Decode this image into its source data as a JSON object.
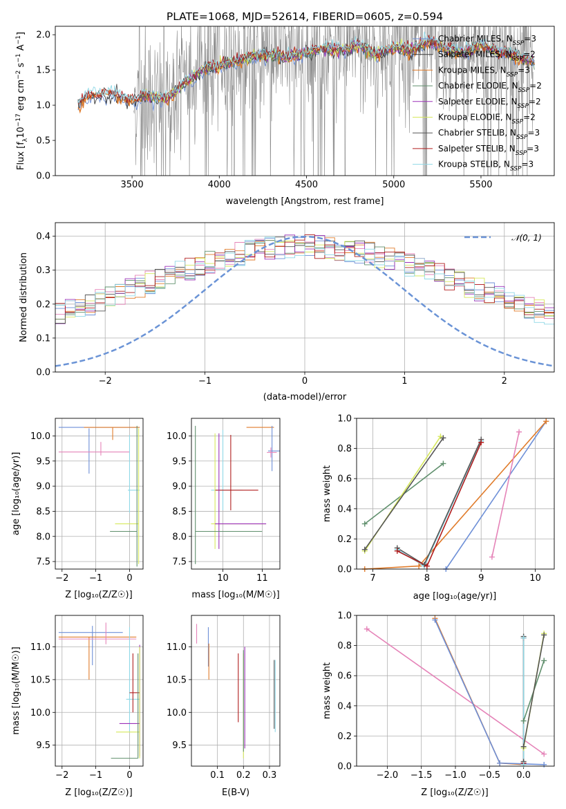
{
  "colors": {
    "chabrier_miles": "#6d8fd7",
    "salpeter_miles": "#3a3a3a",
    "kroupa_miles": "#e07b2a",
    "chabrier_elodie": "#5f8f6c",
    "salpeter_elodie": "#9b30b8",
    "kroupa_elodie": "#d6e85b",
    "chabrier_stelib": "#555555",
    "salpeter_stelib": "#b01c1c",
    "kroupa_stelib": "#8fd8e6",
    "gaussian": "#6a93d6",
    "data": "#8a8a8a"
  },
  "chart_data": [
    {
      "id": "spectrum",
      "type": "line",
      "title": "PLATE=1068, MJD=52614, FIBERID=0605, z=0.594",
      "xlabel": "wavelength [Angstrom, rest frame]",
      "ylabel_parts": [
        "Flux [f",
        "λ",
        "10",
        "−17",
        " erg cm",
        "−2",
        " s",
        "−1",
        " A",
        "−1",
        "]"
      ],
      "xlim": [
        3060,
        5920
      ],
      "ylim": [
        0,
        2.12
      ],
      "xticks": [
        3500,
        4000,
        4500,
        5000,
        5500
      ],
      "yticks": [
        0.0,
        0.5,
        1.0,
        1.5,
        2.0
      ],
      "xtick_labels": [
        "3500",
        "4000",
        "4500",
        "5000",
        "5500"
      ],
      "ytick_labels": [
        "0.0",
        "0.5",
        "1.0",
        "1.5",
        "2.0"
      ],
      "legend": [
        {
          "label": "Chabrier MILES, N",
          "sub": "SSP",
          "suffix": "=3",
          "color_key": "chabrier_miles"
        },
        {
          "label": "Salpeter MILES, N",
          "sub": "SSP",
          "suffix": "=2",
          "color_key": "salpeter_miles"
        },
        {
          "label": "Kroupa MILES, N",
          "sub": "SSP",
          "suffix": "=3",
          "color_key": "kroupa_miles"
        },
        {
          "label": "Chabrier ELODIE, N",
          "sub": "SSP",
          "suffix": "=2",
          "color_key": "chabrier_elodie"
        },
        {
          "label": "Salpeter ELODIE, N",
          "sub": "SSP",
          "suffix": "=2",
          "color_key": "salpeter_elodie"
        },
        {
          "label": "Kroupa ELODIE, N",
          "sub": "SSP",
          "suffix": "=2",
          "color_key": "kroupa_elodie"
        },
        {
          "label": "Chabrier STELIB, N",
          "sub": "SSP",
          "suffix": "=3",
          "color_key": "chabrier_stelib"
        },
        {
          "label": "Salpeter STELIB, N",
          "sub": "SSP",
          "suffix": "=3",
          "color_key": "salpeter_stelib"
        },
        {
          "label": "Kroupa STELIB, N",
          "sub": "SSP",
          "suffix": "=3",
          "color_key": "kroupa_stelib"
        }
      ],
      "model_x": [
        3190,
        3250,
        3300,
        3400,
        3500,
        3560,
        3650,
        3700,
        3800,
        3900,
        4000,
        4100,
        4200,
        4300,
        4400,
        4500,
        4600,
        4700,
        4800,
        4900,
        5000,
        5100,
        5200,
        5300,
        5400,
        5500,
        5600,
        5700,
        5810
      ],
      "model_y": [
        1.0,
        1.13,
        1.15,
        1.15,
        1.05,
        1.13,
        1.1,
        1.08,
        1.3,
        1.5,
        1.55,
        1.62,
        1.7,
        1.72,
        1.68,
        1.75,
        1.8,
        1.78,
        1.85,
        1.72,
        1.82,
        1.78,
        1.9,
        1.8,
        1.75,
        1.85,
        1.75,
        1.7,
        1.62
      ],
      "data_range": [
        3510,
        5800
      ]
    },
    {
      "id": "residuals",
      "type": "histogram",
      "xlabel": "(data-model)/error",
      "ylabel": "Normed distribution",
      "xlim": [
        -2.5,
        2.5
      ],
      "ylim": [
        0,
        0.44
      ],
      "xticks": [
        -2,
        -1,
        0,
        1,
        2
      ],
      "xtick_labels": [
        "−2",
        "−1",
        "0",
        "1",
        "2"
      ],
      "yticks": [
        0.0,
        0.1,
        0.2,
        0.3,
        0.4
      ],
      "ytick_labels": [
        "0.0",
        "0.1",
        "0.2",
        "0.3",
        "0.4"
      ],
      "legend_label": "𝒩(0, 1)",
      "bin_width": 0.1
    },
    {
      "id": "age_vs_Z",
      "type": "errorbar",
      "xlabel": "Z [log₁₀(Z/Z☉)]",
      "ylabel": "age  [log₁₀(age/yr)]",
      "xlim": [
        -2.2,
        0.4
      ],
      "ylim": [
        7.35,
        10.35
      ],
      "xticks": [
        -2,
        -1,
        0
      ],
      "xtick_labels": [
        "−2",
        "−1",
        "0"
      ],
      "yticks": [
        7.5,
        8.0,
        8.5,
        9.0,
        9.5,
        10.0
      ],
      "ytick_labels": [
        "7.5",
        "8.0",
        "8.5",
        "9.0",
        "9.5",
        "10.0"
      ],
      "points": [
        {
          "x": -0.9,
          "y": 10.17,
          "xerr": [
            1.2,
            1.2
          ],
          "yerr": [
            0,
            0
          ],
          "color_key": "chabrier_miles"
        },
        {
          "x": -1.2,
          "y": 9.65,
          "xerr": [
            0,
            0
          ],
          "yerr": [
            0.4,
            0.5
          ],
          "color_key": "chabrier_miles"
        },
        {
          "x": -0.5,
          "y": 10.17,
          "xerr": [
            0.85,
            0.8
          ],
          "yerr": [
            0.25,
            0
          ],
          "color_key": "kroupa_miles"
        },
        {
          "x": -0.85,
          "y": 9.68,
          "xerr": [
            1.25,
            0.85
          ],
          "yerr": [
            0.07,
            0.2
          ],
          "color_key": "pink"
        },
        {
          "x": 0.0,
          "y": 8.92,
          "xerr": [
            0.05,
            0.3
          ],
          "yerr": [
            0.45,
            1.1
          ],
          "color_key": "kroupa_stelib"
        },
        {
          "x": 0.27,
          "y": 8.25,
          "xerr": [
            0.7,
            0
          ],
          "yerr": [
            0.8,
            1.9
          ],
          "color_key": "kroupa_elodie"
        },
        {
          "x": 0.22,
          "y": 8.1,
          "xerr": [
            0.8,
            0
          ],
          "yerr": [
            0.7,
            2.1
          ],
          "color_key": "chabrier_elodie"
        }
      ]
    },
    {
      "id": "age_vs_mass",
      "type": "errorbar",
      "xlabel": "mass [log₁₀(M/M☉)]",
      "xlim": [
        9.2,
        11.45
      ],
      "ylim": [
        7.35,
        10.35
      ],
      "xticks": [
        10,
        11
      ],
      "xtick_labels": [
        "10",
        "11"
      ],
      "yticks": [
        7.5,
        8.0,
        8.5,
        9.0,
        9.5,
        10.0
      ],
      "ytick_labels": [
        "7.5",
        "8.0",
        "8.5",
        "9.0",
        "9.5",
        "10.0"
      ],
      "points": [
        {
          "x": 11.1,
          "y": 10.17,
          "xerr": [
            0.5,
            0.2
          ],
          "yerr": [
            0,
            0
          ],
          "color_key": "kroupa_miles"
        },
        {
          "x": 11.25,
          "y": 9.7,
          "xerr": [
            0.1,
            0.2
          ],
          "yerr": [
            0.4,
            0.5
          ],
          "color_key": "chabrier_miles"
        },
        {
          "x": 11.22,
          "y": 9.67,
          "xerr": [
            0.1,
            0.15
          ],
          "yerr": [
            0.1,
            0.1
          ],
          "color_key": "pink"
        },
        {
          "x": 10.0,
          "y": 8.92,
          "xerr": [
            0.3,
            0.5
          ],
          "yerr": [
            0.4,
            1.2
          ],
          "color_key": "kroupa_stelib"
        },
        {
          "x": 10.2,
          "y": 8.92,
          "xerr": [
            0.4,
            0.7
          ],
          "yerr": [
            0.4,
            1.1
          ],
          "color_key": "salpeter_stelib"
        },
        {
          "x": 9.8,
          "y": 8.25,
          "xerr": [
            0.1,
            1.3
          ],
          "yerr": [
            0.5,
            1.8
          ],
          "color_key": "kroupa_elodie"
        },
        {
          "x": 9.9,
          "y": 8.25,
          "xerr": [
            0.1,
            1.2
          ],
          "yerr": [
            0.5,
            1.8
          ],
          "color_key": "salpeter_elodie"
        },
        {
          "x": 9.3,
          "y": 8.1,
          "xerr": [
            0.0,
            1.7
          ],
          "yerr": [
            0.65,
            2.1
          ],
          "color_key": "chabrier_elodie"
        }
      ]
    },
    {
      "id": "weight_vs_age",
      "type": "line",
      "xlabel": "age  [log₁₀(age/yr)]",
      "ylabel": "mass weight",
      "xlim": [
        6.7,
        10.35
      ],
      "ylim": [
        0,
        1.0
      ],
      "xticks": [
        7,
        8,
        9,
        10
      ],
      "xtick_labels": [
        "7",
        "8",
        "9",
        "10"
      ],
      "yticks": [
        0.0,
        0.2,
        0.4,
        0.6,
        0.8,
        1.0
      ],
      "ytick_labels": [
        "0.0",
        "0.2",
        "0.4",
        "0.6",
        "0.8",
        "1.0"
      ],
      "series": [
        {
          "color_key": "chabrier_miles",
          "x": [
            8.35,
            10.2
          ],
          "y": [
            0.0,
            0.98
          ]
        },
        {
          "color_key": "kroupa_miles",
          "x": [
            6.85,
            7.85,
            10.2
          ],
          "y": [
            0.0,
            0.02,
            0.98
          ]
        },
        {
          "color_key": "pink",
          "x": [
            9.2,
            9.7
          ],
          "y": [
            0.08,
            0.91
          ]
        },
        {
          "color_key": "chabrier_elodie",
          "x": [
            6.85,
            8.3
          ],
          "y": [
            0.3,
            0.7
          ]
        },
        {
          "color_key": "kroupa_elodie",
          "x": [
            6.85,
            8.25
          ],
          "y": [
            0.12,
            0.88
          ]
        },
        {
          "color_key": "chabrier_stelib",
          "x": [
            6.85,
            8.3
          ],
          "y": [
            0.13,
            0.87
          ]
        },
        {
          "color_key": "kroupa_stelib",
          "x": [
            7.45,
            7.95,
            9.0
          ],
          "y": [
            0.13,
            0.02,
            0.85
          ]
        },
        {
          "color_key": "chabrier_stelib",
          "x": [
            7.45,
            7.95,
            9.0
          ],
          "y": [
            0.14,
            0.03,
            0.86
          ]
        },
        {
          "color_key": "salpeter_stelib",
          "x": [
            7.45,
            8.0,
            9.0
          ],
          "y": [
            0.12,
            0.02,
            0.84
          ]
        }
      ]
    },
    {
      "id": "mass_vs_Z",
      "type": "errorbar",
      "xlabel": "Z [log₁₀(Z/Z☉)]",
      "ylabel": "mass [log₁₀(M/M☉)]",
      "xlim": [
        -2.2,
        0.4
      ],
      "ylim": [
        9.18,
        11.48
      ],
      "xticks": [
        -2,
        -1,
        0
      ],
      "xtick_labels": [
        "−2",
        "−1",
        "0"
      ],
      "yticks": [
        9.5,
        10.0,
        10.5,
        11.0
      ],
      "ytick_labels": [
        "9.5",
        "10.0",
        "10.5",
        "11.0"
      ],
      "points": [
        {
          "x": -1.1,
          "y": 11.22,
          "xerr": [
            1.0,
            0.9
          ],
          "yerr": [
            0.5,
            0.1
          ],
          "color_key": "chabrier_miles"
        },
        {
          "x": -1.2,
          "y": 11.15,
          "xerr": [
            0.9,
            1.4
          ],
          "yerr": [
            0.65,
            0
          ],
          "color_key": "kroupa_miles"
        },
        {
          "x": -0.7,
          "y": 11.12,
          "xerr": [
            1.4,
            0.9
          ],
          "yerr": [
            0.08,
            0.25
          ],
          "color_key": "pink"
        },
        {
          "x": 0.0,
          "y": 10.2,
          "xerr": [
            0.1,
            0.3
          ],
          "yerr": [
            0.5,
            1.1
          ],
          "color_key": "kroupa_stelib"
        },
        {
          "x": 0.1,
          "y": 10.3,
          "xerr": [
            0.1,
            0.2
          ],
          "yerr": [
            0.3,
            0.6
          ],
          "color_key": "salpeter_stelib"
        },
        {
          "x": 0.3,
          "y": 9.83,
          "xerr": [
            0.6,
            0
          ],
          "yerr": [
            0.5,
            1.2
          ],
          "color_key": "salpeter_elodie"
        },
        {
          "x": 0.3,
          "y": 9.7,
          "xerr": [
            0.7,
            0
          ],
          "yerr": [
            0.4,
            1.3
          ],
          "color_key": "kroupa_elodie"
        },
        {
          "x": 0.25,
          "y": 9.3,
          "xerr": [
            0.8,
            0
          ],
          "yerr": [
            0.0,
            1.6
          ],
          "color_key": "chabrier_elodie"
        }
      ]
    },
    {
      "id": "mass_vs_ebv",
      "type": "errorbar",
      "xlabel": "E(B-V)",
      "xlim": [
        0.0,
        0.34
      ],
      "ylim": [
        9.18,
        11.48
      ],
      "xticks": [
        0.1,
        0.2,
        0.3
      ],
      "xtick_labels": [
        "0.1",
        "0.2",
        "0.3"
      ],
      "yticks": [
        9.5,
        10.0,
        10.5,
        11.0
      ],
      "ytick_labels": [
        "9.5",
        "10.0",
        "10.5",
        "11.0"
      ],
      "points": [
        {
          "x": 0.02,
          "y": 11.2,
          "yerr": [
            0.15,
            0.15
          ],
          "color_key": "pink"
        },
        {
          "x": 0.065,
          "y": 11.0,
          "yerr": [
            0.3,
            0.3
          ],
          "color_key": "chabrier_miles"
        },
        {
          "x": 0.067,
          "y": 10.9,
          "yerr": [
            0.4,
            0.15
          ],
          "color_key": "kroupa_miles"
        },
        {
          "x": 0.18,
          "y": 10.4,
          "yerr": [
            0.55,
            0.5
          ],
          "color_key": "salpeter_stelib"
        },
        {
          "x": 0.205,
          "y": 10.3,
          "yerr": [
            0.85,
            0.7
          ],
          "color_key": "salpeter_elodie"
        },
        {
          "x": 0.2,
          "y": 10.1,
          "yerr": [
            0.8,
            0.8
          ],
          "color_key": "kroupa_elodie"
        },
        {
          "x": 0.2,
          "y": 10.1,
          "yerr": [
            0.7,
            0.85
          ],
          "color_key": "chabrier_elodie"
        },
        {
          "x": 0.322,
          "y": 10.25,
          "yerr": [
            0.55,
            0.55
          ],
          "color_key": "kroupa_stelib"
        },
        {
          "x": 0.318,
          "y": 10.25,
          "yerr": [
            0.5,
            0.55
          ],
          "color_key": "chabrier_stelib"
        }
      ]
    },
    {
      "id": "weight_vs_Z",
      "type": "line",
      "xlabel": "Z [log₁₀(Z/Z☉)]",
      "ylabel": "mass weight",
      "xlim": [
        -2.45,
        0.45
      ],
      "ylim": [
        0,
        1.0
      ],
      "xticks": [
        -2.0,
        -1.5,
        -1.0,
        -0.5,
        0.0
      ],
      "xtick_labels": [
        "−2.0",
        "−1.5",
        "−1.0",
        "−0.5",
        "0.0"
      ],
      "yticks": [
        0.0,
        0.2,
        0.4,
        0.6,
        0.8,
        1.0
      ],
      "ytick_labels": [
        "0.0",
        "0.2",
        "0.4",
        "0.6",
        "0.8",
        "1.0"
      ],
      "series": [
        {
          "color_key": "pink",
          "x": [
            -2.3,
            0.3
          ],
          "y": [
            0.91,
            0.08
          ]
        },
        {
          "color_key": "kroupa_miles",
          "x": [
            -1.3,
            -0.35,
            0.0
          ],
          "y": [
            0.98,
            0.02,
            0.01
          ]
        },
        {
          "color_key": "chabrier_miles",
          "x": [
            -1.3,
            -0.35,
            0.3
          ],
          "y": [
            0.97,
            0.02,
            0.01
          ]
        },
        {
          "color_key": "salpeter_stelib",
          "x": [
            0.0,
            0.0
          ],
          "y": [
            0.02,
            0.85
          ]
        },
        {
          "color_key": "chabrier_stelib",
          "x": [
            0.0,
            0.0
          ],
          "y": [
            0.03,
            0.86
          ]
        },
        {
          "color_key": "kroupa_stelib",
          "x": [
            0.0,
            0.0
          ],
          "y": [
            0.01,
            0.85
          ]
        },
        {
          "color_key": "chabrier_elodie",
          "x": [
            0.0,
            0.3
          ],
          "y": [
            0.3,
            0.7
          ]
        },
        {
          "color_key": "kroupa_elodie",
          "x": [
            0.0,
            0.3
          ],
          "y": [
            0.12,
            0.88
          ]
        },
        {
          "color_key": "chabrier_stelib",
          "x": [
            0.0,
            0.3
          ],
          "y": [
            0.13,
            0.87
          ]
        }
      ]
    }
  ]
}
